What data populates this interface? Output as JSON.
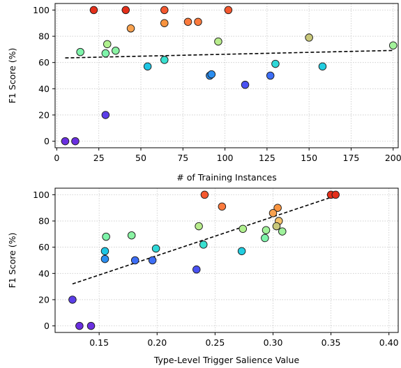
{
  "chart_data": [
    {
      "type": "scatter",
      "xlabel": "# of Training Instances",
      "ylabel": "F1 Score (%)",
      "xlim": [
        -1,
        203
      ],
      "ylim": [
        -5,
        105
      ],
      "xticks": [
        "0",
        "25",
        "50",
        "75",
        "100",
        "125",
        "150",
        "175",
        "200"
      ],
      "yticks": [
        "0",
        "20",
        "40",
        "60",
        "80",
        "100"
      ],
      "grid": true,
      "trendline": {
        "style": "dashed",
        "x": [
          5,
          200
        ],
        "y": [
          63.5,
          69.2
        ]
      },
      "points": [
        {
          "x": 5,
          "y": 0,
          "color": "#6a2fe0"
        },
        {
          "x": 11,
          "y": 0,
          "color": "#6a2fe0"
        },
        {
          "x": 22,
          "y": 100,
          "color": "#e42f1a"
        },
        {
          "x": 41,
          "y": 100,
          "color": "#e42f1a"
        },
        {
          "x": 64,
          "y": 100,
          "color": "#f4582f"
        },
        {
          "x": 102,
          "y": 100,
          "color": "#f4582f"
        },
        {
          "x": 44,
          "y": 86,
          "color": "#f9a24f"
        },
        {
          "x": 64,
          "y": 90,
          "color": "#f9943f"
        },
        {
          "x": 78,
          "y": 91,
          "color": "#fb7a3d"
        },
        {
          "x": 84,
          "y": 91,
          "color": "#fb7a3d"
        },
        {
          "x": 150,
          "y": 79,
          "color": "#c8c77a"
        },
        {
          "x": 96,
          "y": 76,
          "color": "#b8ec8c"
        },
        {
          "x": 30,
          "y": 74,
          "color": "#b0f08e"
        },
        {
          "x": 200,
          "y": 73,
          "color": "#a2f29a"
        },
        {
          "x": 14,
          "y": 68,
          "color": "#7ef4aa"
        },
        {
          "x": 35,
          "y": 69,
          "color": "#8af3a3"
        },
        {
          "x": 29,
          "y": 67,
          "color": "#7ef4aa"
        },
        {
          "x": 64,
          "y": 62,
          "color": "#38e0d0"
        },
        {
          "x": 130,
          "y": 59,
          "color": "#2ed8d8"
        },
        {
          "x": 158,
          "y": 57,
          "color": "#22cde0"
        },
        {
          "x": 54,
          "y": 57,
          "color": "#1ec6e4"
        },
        {
          "x": 91,
          "y": 50,
          "color": "#2b8ef0"
        },
        {
          "x": 92,
          "y": 51,
          "color": "#2b8ef0"
        },
        {
          "x": 127,
          "y": 50,
          "color": "#3d6ef6"
        },
        {
          "x": 112,
          "y": 43,
          "color": "#4a52f2"
        },
        {
          "x": 29,
          "y": 20,
          "color": "#5b3ee8"
        }
      ]
    },
    {
      "type": "scatter",
      "xlabel": "Type-Level Trigger Salience Value",
      "ylabel": "F1 Score (%)",
      "xlim": [
        0.112,
        0.408
      ],
      "ylim": [
        -5,
        105
      ],
      "xticks": [
        "0.15",
        "0.20",
        "0.25",
        "0.30",
        "0.35",
        "0.40"
      ],
      "yticks": [
        "0",
        "20",
        "40",
        "60",
        "80",
        "100"
      ],
      "grid": true,
      "trendline": {
        "style": "dashed",
        "x": [
          0.127,
          0.35
        ],
        "y": [
          32,
          98
        ]
      },
      "points": [
        {
          "x": 0.133,
          "y": 0,
          "color": "#6a2fe0"
        },
        {
          "x": 0.143,
          "y": 0,
          "color": "#6a2fe0"
        },
        {
          "x": 0.127,
          "y": 20,
          "color": "#5b3ee8"
        },
        {
          "x": 0.241,
          "y": 100,
          "color": "#f4582f"
        },
        {
          "x": 0.35,
          "y": 100,
          "color": "#e42f1a"
        },
        {
          "x": 0.354,
          "y": 100,
          "color": "#e42f1a"
        },
        {
          "x": 0.256,
          "y": 91,
          "color": "#fb7a3d"
        },
        {
          "x": 0.304,
          "y": 90,
          "color": "#f9943f"
        },
        {
          "x": 0.3,
          "y": 86,
          "color": "#f9a24f"
        },
        {
          "x": 0.305,
          "y": 80,
          "color": "#f4c26a"
        },
        {
          "x": 0.303,
          "y": 76,
          "color": "#c8c77a"
        },
        {
          "x": 0.236,
          "y": 76,
          "color": "#b8ec8c"
        },
        {
          "x": 0.274,
          "y": 74,
          "color": "#b0f08e"
        },
        {
          "x": 0.294,
          "y": 73,
          "color": "#a2f29a"
        },
        {
          "x": 0.308,
          "y": 72,
          "color": "#9ff29c"
        },
        {
          "x": 0.178,
          "y": 69,
          "color": "#8af3a3"
        },
        {
          "x": 0.156,
          "y": 68,
          "color": "#7ef4aa"
        },
        {
          "x": 0.293,
          "y": 67,
          "color": "#7ef4aa"
        },
        {
          "x": 0.24,
          "y": 62,
          "color": "#38e0d0"
        },
        {
          "x": 0.199,
          "y": 59,
          "color": "#2ed8d8"
        },
        {
          "x": 0.273,
          "y": 57,
          "color": "#22cde0"
        },
        {
          "x": 0.155,
          "y": 57,
          "color": "#1ec6e4"
        },
        {
          "x": 0.155,
          "y": 51,
          "color": "#2b8ef0"
        },
        {
          "x": 0.181,
          "y": 50,
          "color": "#3d6ef6"
        },
        {
          "x": 0.196,
          "y": 50,
          "color": "#3d6ef6"
        },
        {
          "x": 0.234,
          "y": 43,
          "color": "#4a52f2"
        }
      ]
    }
  ]
}
